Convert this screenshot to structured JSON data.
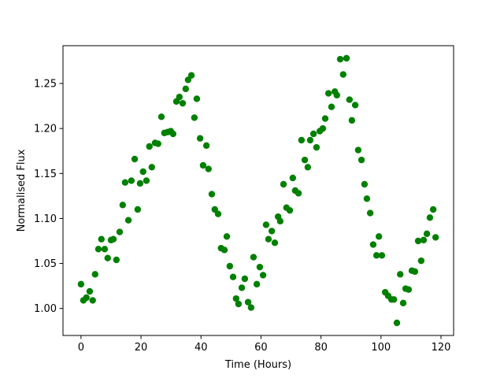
{
  "chart_data": {
    "type": "scatter",
    "xlabel": "Time (Hours)",
    "ylabel": "Normalised Flux",
    "color": "#008000",
    "x": [
      0,
      0.8,
      1.8,
      2.9,
      3.9,
      4.7,
      5.8,
      6.8,
      7.9,
      8.9,
      10,
      10.8,
      11.8,
      12.9,
      13.9,
      14.7,
      15.8,
      16.8,
      17.9,
      18.9,
      19.7,
      20.7,
      21.8,
      22.8,
      23.6,
      24.7,
      25.7,
      26.8,
      27.8,
      28.9,
      29.9,
      30.7,
      31.8,
      32.8,
      33.9,
      34.9,
      35.7,
      36.8,
      37.8,
      38.6,
      39.7,
      40.7,
      41.8,
      42.5,
      43.6,
      44.6,
      45.7,
      46.7,
      47.8,
      48.6,
      49.6,
      50.7,
      51.7,
      52.5,
      53.6,
      54.6,
      55.7,
      56.7,
      57.5,
      58.6,
      59.6,
      60.7,
      61.7,
      62.5,
      63.6,
      64.6,
      65.7,
      66.4,
      67.5,
      68.5,
      69.6,
      70.6,
      71.4,
      72.5,
      73.5,
      74.6,
      75.6,
      76.4,
      77.5,
      78.5,
      79.6,
      80.6,
      81.4,
      82.5,
      83.5,
      84.6,
      85.3,
      86.4,
      87.4,
      88.5,
      89.5,
      90.3,
      91.4,
      92.4,
      93.5,
      94.5,
      95.3,
      96.4,
      97.4,
      98.5,
      99.3,
      100.3,
      101.4,
      102.4,
      103.5,
      104.3,
      105.3,
      106.4,
      107.4,
      108.2,
      109.2,
      110.3,
      111.3,
      112.4,
      113.4,
      114.2,
      115.3,
      116.3,
      117.4,
      118.2
    ],
    "values": [
      1.027,
      1.009,
      1.012,
      1.019,
      1.009,
      1.038,
      1.066,
      1.077,
      1.066,
      1.056,
      1.076,
      1.077,
      1.054,
      1.085,
      1.115,
      1.14,
      1.098,
      1.142,
      1.166,
      1.11,
      1.139,
      1.152,
      1.142,
      1.18,
      1.157,
      1.184,
      1.183,
      1.213,
      1.195,
      1.196,
      1.197,
      1.194,
      1.23,
      1.235,
      1.228,
      1.244,
      1.254,
      1.259,
      1.212,
      1.233,
      1.189,
      1.159,
      1.181,
      1.155,
      1.127,
      1.11,
      1.105,
      1.067,
      1.065,
      1.08,
      1.047,
      1.035,
      1.011,
      1.005,
      1.023,
      1.033,
      1.007,
      1.001,
      1.057,
      1.027,
      1.046,
      1.037,
      1.093,
      1.077,
      1.086,
      1.073,
      1.102,
      1.097,
      1.138,
      1.112,
      1.109,
      1.145,
      1.131,
      1.128,
      1.187,
      1.165,
      1.157,
      1.187,
      1.194,
      1.179,
      1.197,
      1.2,
      1.211,
      1.239,
      1.224,
      1.241,
      1.237,
      1.277,
      1.26,
      1.278,
      1.232,
      1.209,
      1.226,
      1.176,
      1.165,
      1.138,
      1.122,
      1.106,
      1.071,
      1.059,
      1.08,
      1.059,
      1.018,
      1.014,
      1.01,
      1.01,
      0.984,
      1.038,
      1.006,
      1.022,
      1.021,
      1.042,
      1.041,
      1.075,
      1.053,
      1.076,
      1.083,
      1.101,
      1.11,
      1.079
    ],
    "xlim": [
      -6,
      124.2
    ],
    "ylim": [
      0.97,
      1.292
    ],
    "xticks": [
      0,
      20,
      40,
      60,
      80,
      100,
      120
    ],
    "yticks": [
      {
        "value": 1,
        "label": "1.00"
      },
      1.05,
      {
        "value": 1.1,
        "label": "1.10"
      },
      1.15,
      {
        "value": 1.2,
        "label": "1.20"
      },
      1.25
    ]
  }
}
